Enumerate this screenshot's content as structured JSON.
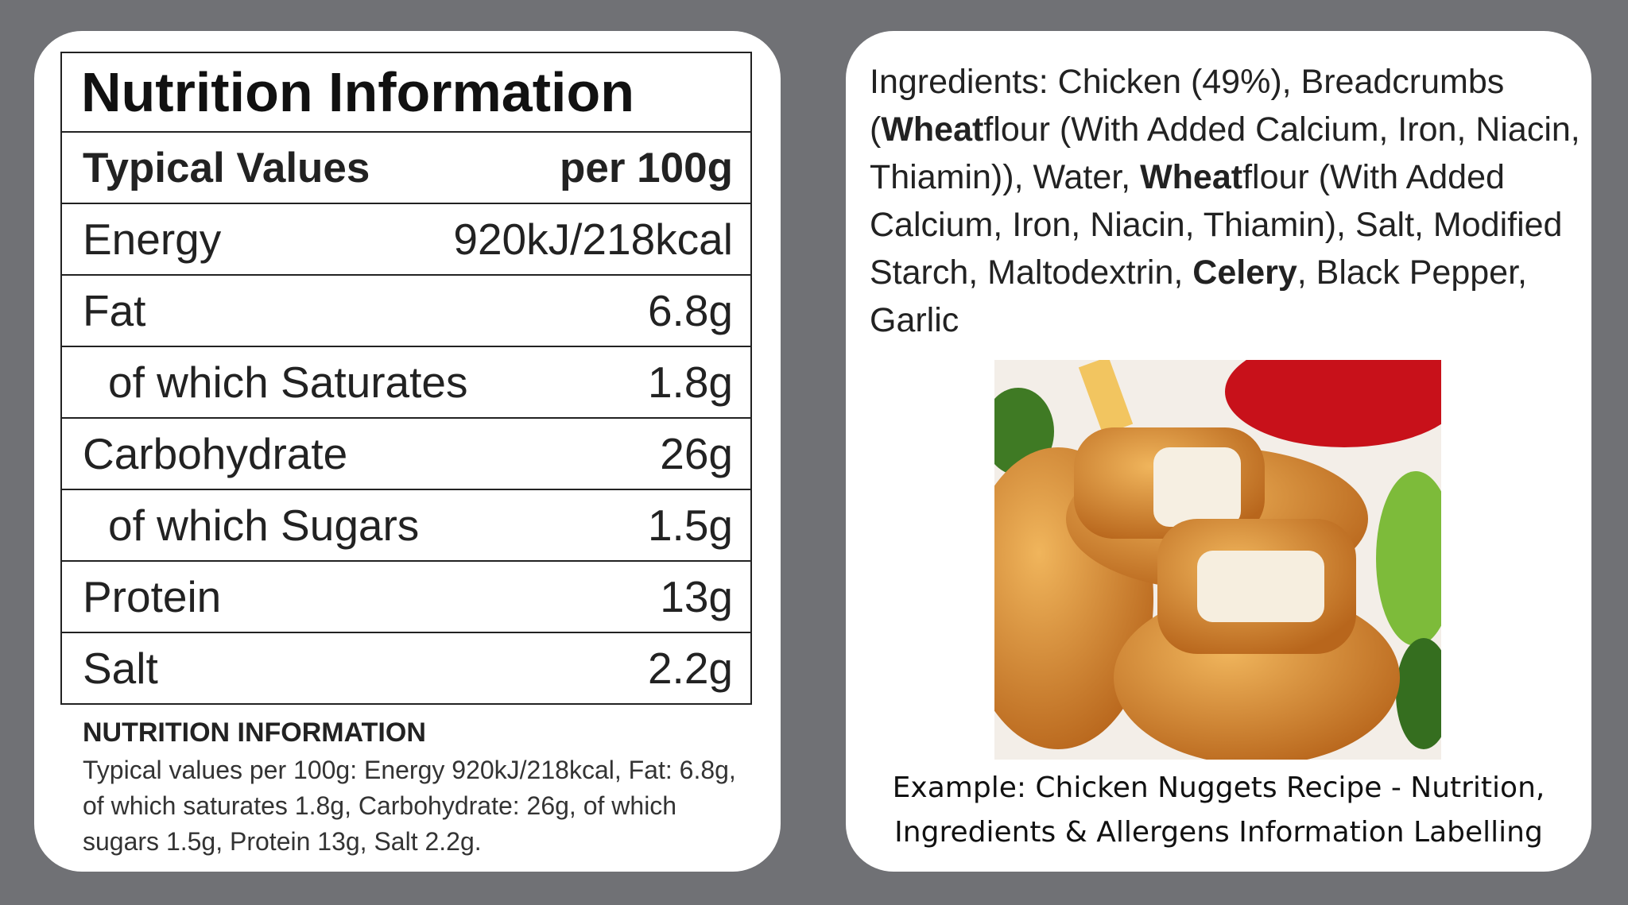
{
  "nutrition": {
    "title": "Nutrition Information",
    "header": [
      "Typical Values",
      "per 100g"
    ],
    "rows": [
      {
        "label": "Energy",
        "value": "920kJ/218kcal",
        "indent": false
      },
      {
        "label": "Fat",
        "value": "6.8g",
        "indent": false
      },
      {
        "label": "of which Saturates",
        "value": "1.8g",
        "indent": true
      },
      {
        "label": "Carbohydrate",
        "value": "26g",
        "indent": false
      },
      {
        "label": "of which Sugars",
        "value": "1.5g",
        "indent": true
      },
      {
        "label": "Protein",
        "value": "13g",
        "indent": false
      },
      {
        "label": "Salt",
        "value": "2.2g",
        "indent": false
      }
    ]
  },
  "summary": {
    "title": "NUTRITION INFORMATION",
    "text": "Typical values per 100g: Energy 920kJ/218kcal, Fat: 6.8g, of which saturates 1.8g, Carbohydrate: 26g, of which sugars 1.5g, Protein 13g, Salt 2.2g."
  },
  "ingredients": [
    {
      "text": "Ingredients: Chicken (49%), Breadcrumbs (",
      "bold": false
    },
    {
      "text": "Wheat",
      "bold": true
    },
    {
      "text": "flour (With Added Calcium, Iron, Niacin, Thiamin)), Water, ",
      "bold": false
    },
    {
      "text": "Wheat",
      "bold": true
    },
    {
      "text": "flour (With Added Calcium, Iron, Niacin, Thiamin), Salt, Modified Starch, Maltodextrin, ",
      "bold": false
    },
    {
      "text": "Celery",
      "bold": true
    },
    {
      "text": ", Black Pepper, Garlic",
      "bold": false
    }
  ],
  "caption": [
    "Example: Chicken Nuggets Recipe - Nutrition,",
    "Ingredients & Allergens Information Labelling"
  ]
}
